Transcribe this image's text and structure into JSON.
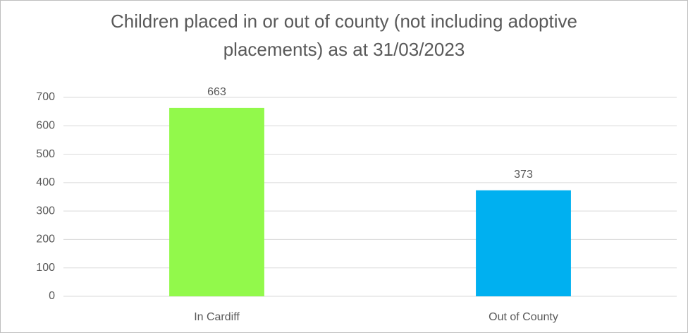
{
  "chart_data": {
    "type": "bar",
    "title": "Children placed in or out of county (not including adoptive placements) as at 31/03/2023",
    "categories": [
      "In Cardiff",
      "Out of County"
    ],
    "values": [
      663,
      373
    ],
    "colors": [
      "#92f94b",
      "#00b0f0"
    ],
    "ylim": [
      0,
      700
    ],
    "yticks": [
      0,
      100,
      200,
      300,
      400,
      500,
      600,
      700
    ],
    "grid": true,
    "data_labels": true
  }
}
